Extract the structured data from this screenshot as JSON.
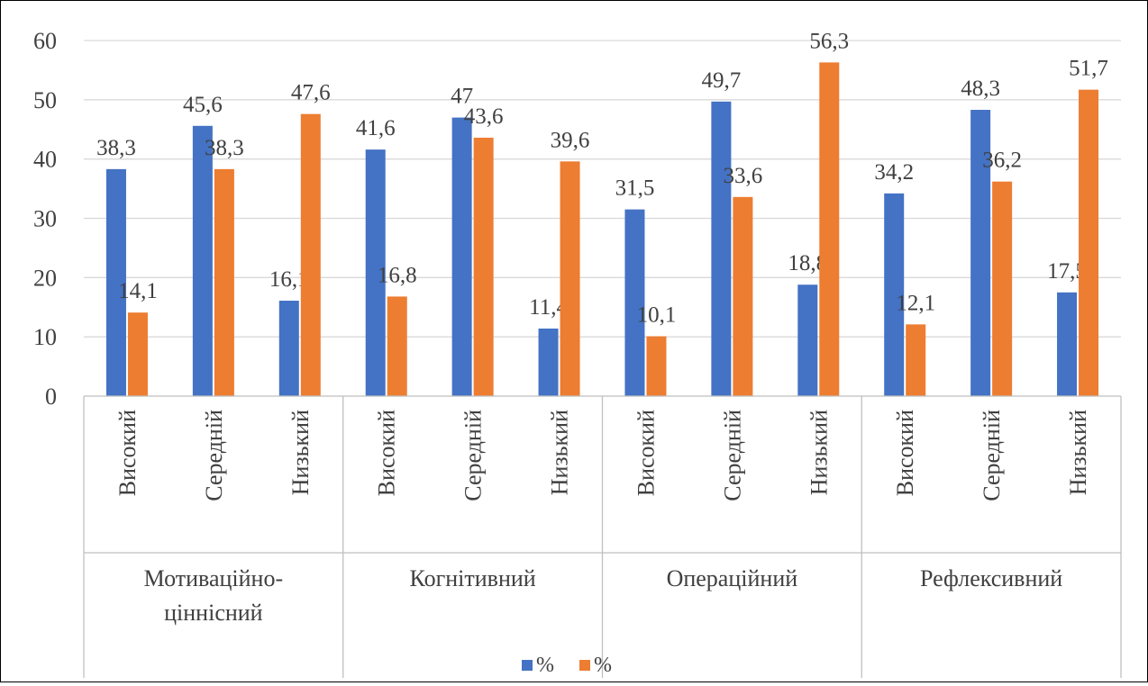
{
  "chart_data": {
    "type": "bar",
    "title": "",
    "xlabel": "",
    "ylabel": "",
    "ylim": [
      0,
      60
    ],
    "yticks": [
      "0",
      "10",
      "20",
      "30",
      "40",
      "50",
      "60"
    ],
    "grid": true,
    "legend_position": "bottom",
    "groups": [
      "Мотиваційно-ціннісний",
      "Когнітивний",
      "Операційний",
      "Рефлексивний"
    ],
    "group_lines": [
      [
        "Мотиваційно-",
        "ціннісний"
      ],
      [
        "Когнітивний"
      ],
      [
        "Операційний"
      ],
      [
        "Рефлексивний"
      ]
    ],
    "levels": [
      "Високий",
      "Середній",
      "Низький"
    ],
    "categories": [
      "Мотиваційно-ціннісний / Високий",
      "Мотиваційно-ціннісний / Середній",
      "Мотиваційно-ціннісний / Низький",
      "Когнітивний / Високий",
      "Когнітивний / Середній",
      "Когнітивний / Низький",
      "Операційний / Високий",
      "Операційний / Середній",
      "Операційний / Низький",
      "Рефлексивний / Високий",
      "Рефлексивний / Середній",
      "Рефлексивний / Низький"
    ],
    "series": [
      {
        "name": "%",
        "color": "#4472C4",
        "values": [
          38.3,
          45.6,
          16.1,
          41.6,
          47,
          11.4,
          31.5,
          49.7,
          18.8,
          34.2,
          48.3,
          17.5
        ],
        "labels": [
          "38,3",
          "45,6",
          "16,1",
          "41,6",
          "47",
          "11,4",
          "31,5",
          "49,7",
          "18,8",
          "34,2",
          "48,3",
          "17,5"
        ]
      },
      {
        "name": "%",
        "color": "#ED7D31",
        "values": [
          14.1,
          38.3,
          47.6,
          16.8,
          43.6,
          39.6,
          10.1,
          33.6,
          56.3,
          12.1,
          36.2,
          51.7
        ],
        "labels": [
          "14,1",
          "38,3",
          "47,6",
          "16,8",
          "43,6",
          "39,6",
          "10,1",
          "33,6",
          "56,3",
          "12,1",
          "36,2",
          "51,7"
        ]
      }
    ]
  }
}
